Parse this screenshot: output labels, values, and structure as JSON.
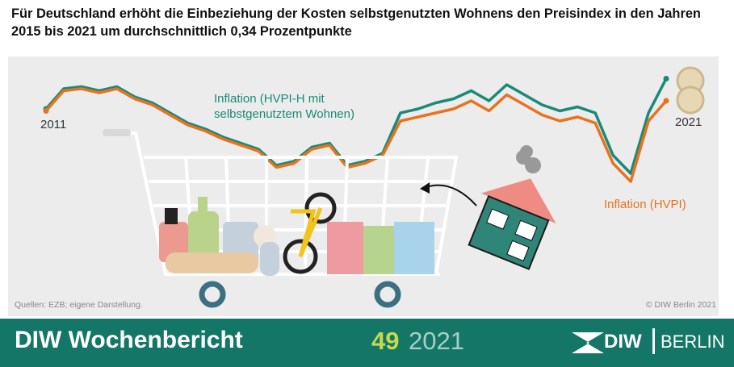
{
  "chart_data": {
    "type": "line",
    "title": "Für Deutschland erhöht die Einbeziehung der Kosten selbstgenutzten Wohnens den Preisindex in den Jahren 2015 bis 2021 um durchschnittlich 0,34 Prozentpunkte",
    "categories": [
      "2011",
      null,
      null,
      null,
      null,
      null,
      null,
      null,
      null,
      null,
      null,
      null,
      null,
      null,
      null,
      null,
      null,
      null,
      null,
      null,
      null,
      null,
      null,
      null,
      null,
      null,
      null,
      null,
      null,
      null,
      null,
      null,
      null,
      null,
      null,
      "2021"
    ],
    "series": [
      {
        "name": "Inflation (HVPI-H mit selbstgenutztem Wohnen)",
        "color": "#1a8a78",
        "values": [
          2.6,
          3.6,
          3.7,
          3.5,
          3.7,
          3.2,
          2.9,
          2.4,
          1.9,
          1.6,
          1.2,
          0.9,
          0.6,
          -0.2,
          0.0,
          0.7,
          0.9,
          -0.2,
          0.0,
          0.4,
          2.4,
          2.6,
          2.9,
          3.1,
          3.5,
          3.0,
          3.8,
          3.3,
          2.8,
          2.5,
          2.7,
          2.4,
          0.3,
          -0.6,
          2.4,
          4.1
        ]
      },
      {
        "name": "Inflation (HVPI)",
        "color": "#e8731f",
        "values": [
          2.5,
          3.5,
          3.6,
          3.4,
          3.6,
          3.1,
          2.8,
          2.3,
          1.8,
          1.5,
          1.1,
          0.8,
          0.5,
          -0.3,
          -0.1,
          0.6,
          0.8,
          -0.3,
          -0.1,
          0.3,
          2.0,
          2.2,
          2.4,
          2.6,
          3.0,
          2.5,
          3.3,
          2.8,
          2.3,
          2.0,
          2.2,
          1.9,
          -0.1,
          -1.0,
          2.0,
          3.0
        ]
      }
    ],
    "ylim": [
      -1.6,
      4.8
    ],
    "source": "Quellen: EZB; eigene Darstellung.",
    "copyright": "© DIW Berlin 2021"
  },
  "footer": {
    "publication": "DIW Wochenbericht",
    "issue": "49",
    "year": "2021",
    "logo_left": "DIW",
    "logo_right": "BERLIN"
  }
}
